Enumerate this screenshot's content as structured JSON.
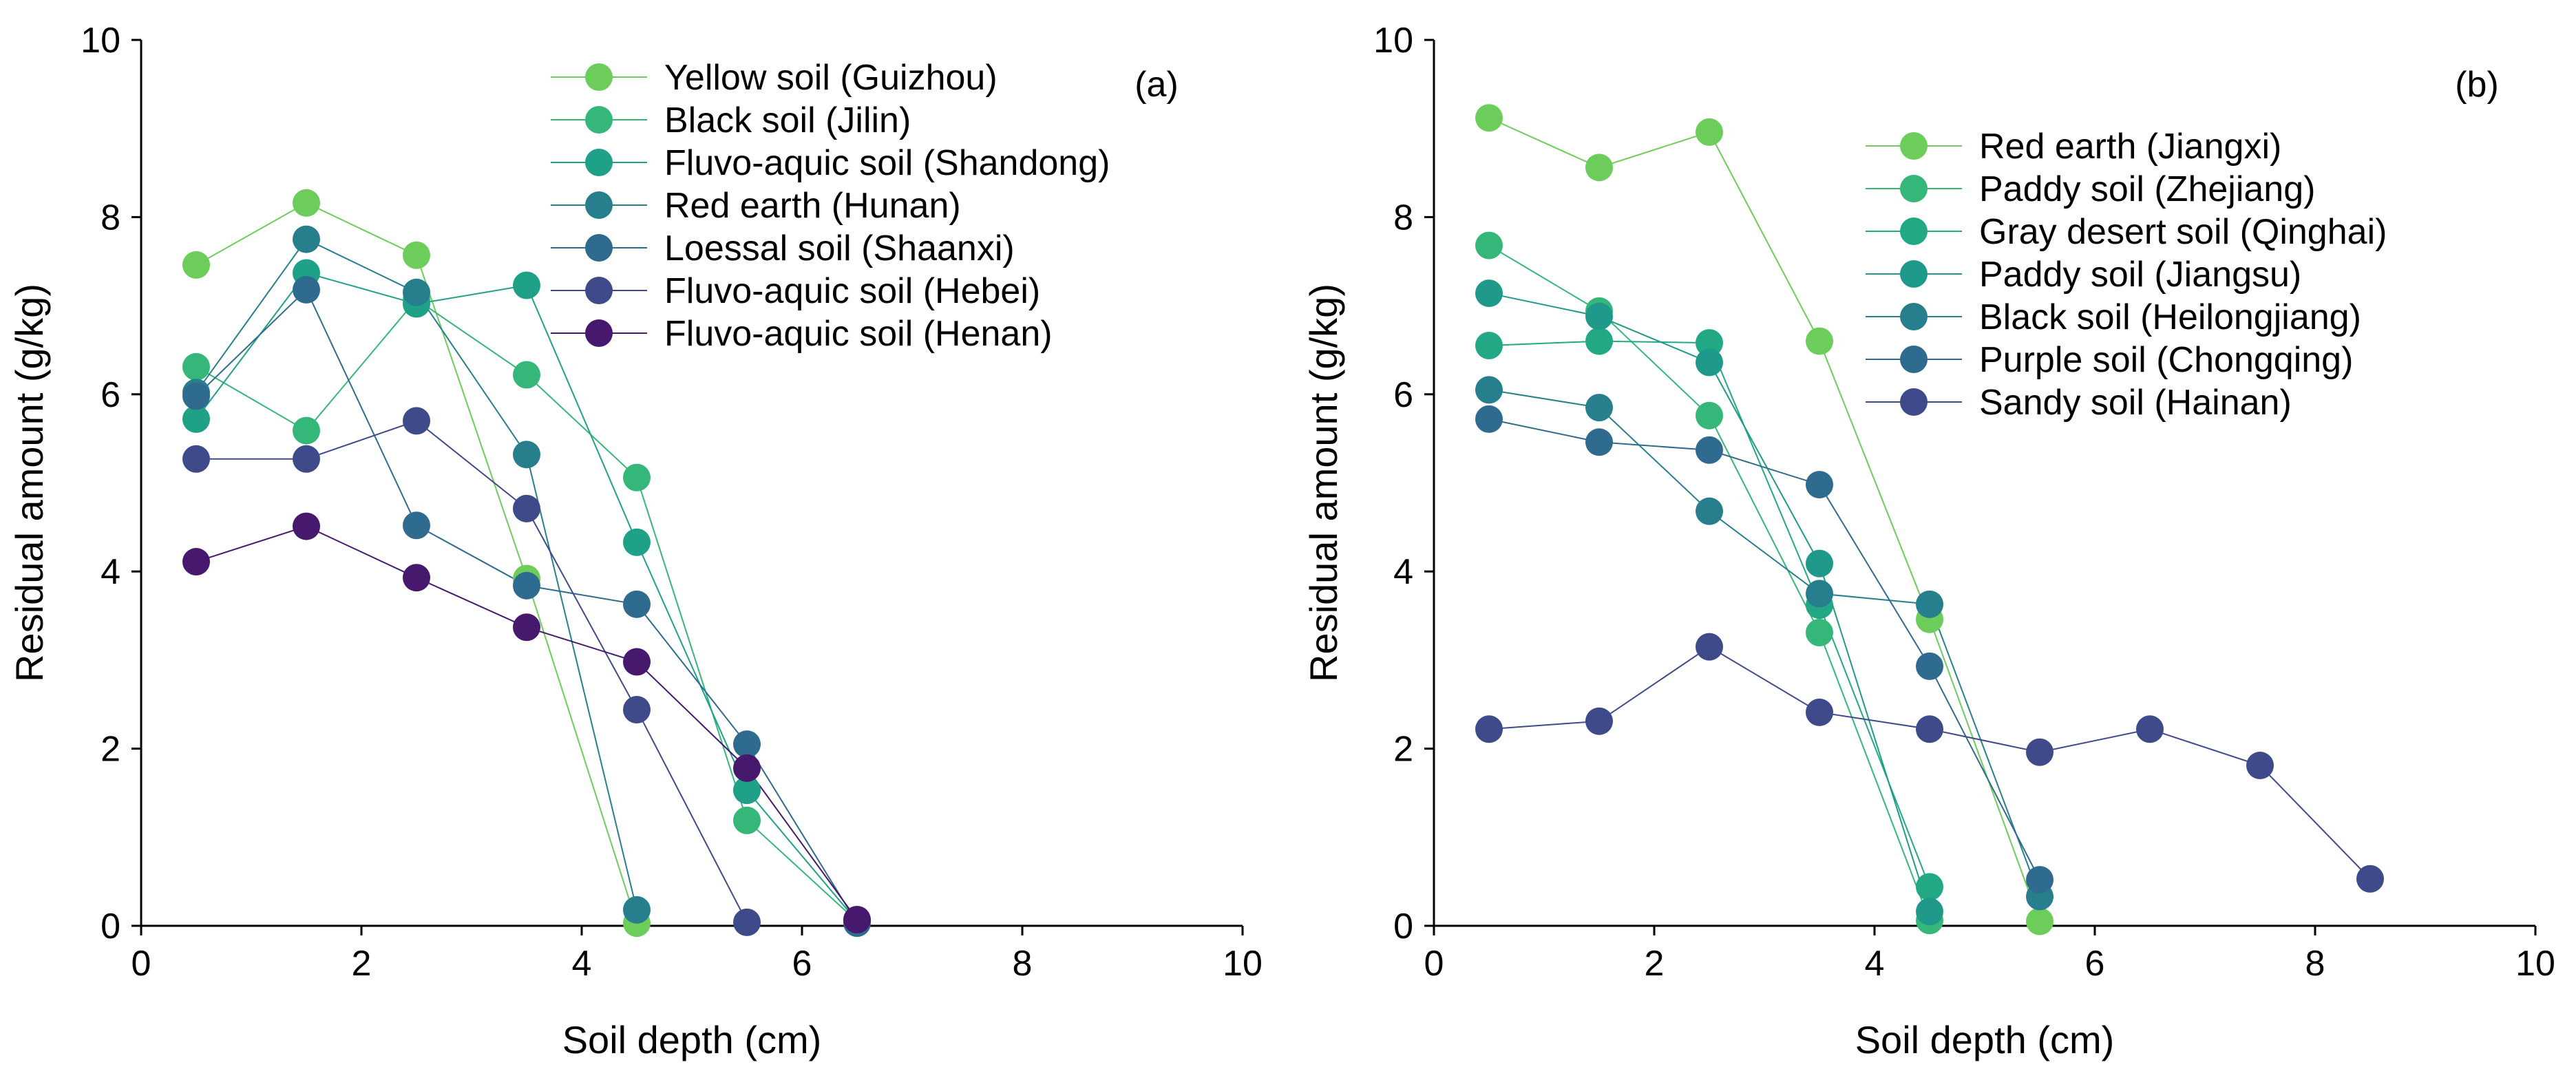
{
  "chart_data": [
    {
      "type": "line",
      "panel_label": "(a)",
      "xlabel": "Soil depth (cm)",
      "ylabel": "Residual amount (g/kg)",
      "xlim": [
        0,
        10
      ],
      "ylim": [
        0,
        10
      ],
      "xticks": [
        "0",
        "2",
        "4",
        "6",
        "8",
        "10"
      ],
      "yticks": [
        "0",
        "2",
        "4",
        "6",
        "8",
        "10"
      ],
      "legend_position": "top-right",
      "series": [
        {
          "name": "Yellow soil (Guizhou)",
          "color": "#6ccd5a",
          "x": [
            0.5,
            1.5,
            2.5,
            3.5,
            4.5
          ],
          "y": [
            7.46,
            8.16,
            7.57,
            3.92,
            0.03
          ]
        },
        {
          "name": "Black soil (Jilin)",
          "color": "#35b779",
          "x": [
            0.5,
            1.5,
            2.5,
            3.5,
            4.5,
            5.5,
            6.5
          ],
          "y": [
            6.31,
            5.59,
            7.07,
            6.22,
            5.06,
            1.19,
            0.05
          ]
        },
        {
          "name": "Fluvo-aquic soil (Shandong)",
          "color": "#1fa187",
          "x": [
            0.5,
            1.5,
            2.5,
            3.5,
            4.5,
            5.5,
            6.5
          ],
          "y": [
            5.72,
            7.37,
            7.02,
            7.23,
            4.33,
            1.53,
            0.05
          ]
        },
        {
          "name": "Red earth (Hunan)",
          "color": "#277f8e",
          "x": [
            0.5,
            1.5,
            2.5,
            3.5,
            4.5
          ],
          "y": [
            6.02,
            7.75,
            7.15,
            5.32,
            0.18
          ]
        },
        {
          "name": "Loessal soil (Shaanxi)",
          "color": "#2f6b8e",
          "x": [
            0.5,
            1.5,
            2.5,
            3.5,
            4.5,
            5.5,
            6.5
          ],
          "y": [
            5.98,
            7.18,
            4.52,
            3.84,
            3.63,
            2.05,
            0.03
          ]
        },
        {
          "name": "Fluvo-aquic soil (Hebei)",
          "color": "#3e4a89",
          "x": [
            0.5,
            1.5,
            2.5,
            3.5,
            4.5,
            5.5
          ],
          "y": [
            5.27,
            5.27,
            5.7,
            4.71,
            2.44,
            0.04
          ]
        },
        {
          "name": "Fluvo-aquic soil (Henan)",
          "color": "#46186e",
          "x": [
            0.5,
            1.5,
            2.5,
            3.5,
            4.5,
            5.5,
            6.5
          ],
          "y": [
            4.11,
            4.51,
            3.93,
            3.37,
            2.98,
            1.78,
            0.07
          ]
        }
      ]
    },
    {
      "type": "line",
      "panel_label": "(b)",
      "xlabel": "Soil depth (cm)",
      "ylabel": "Residual amount (g/kg)",
      "xlim": [
        0,
        10
      ],
      "ylim": [
        0,
        10
      ],
      "xticks": [
        "0",
        "2",
        "4",
        "6",
        "8",
        "10"
      ],
      "yticks": [
        "0",
        "2",
        "4",
        "6",
        "8",
        "10"
      ],
      "legend_position": "top-right",
      "series": [
        {
          "name": "Red earth (Jiangxi)",
          "color": "#6ccd5a",
          "x": [
            0.5,
            1.5,
            2.5,
            3.5,
            4.5,
            5.5
          ],
          "y": [
            9.12,
            8.56,
            8.96,
            6.6,
            3.46,
            0.05
          ]
        },
        {
          "name": "Paddy soil (Zhejiang)",
          "color": "#35b779",
          "x": [
            0.5,
            1.5,
            2.5,
            3.5,
            4.5
          ],
          "y": [
            7.68,
            6.94,
            5.76,
            3.31,
            0.06
          ]
        },
        {
          "name": "Gray desert soil (Qinghai)",
          "color": "#22a884",
          "x": [
            0.5,
            1.5,
            2.5,
            3.5,
            4.5
          ],
          "y": [
            6.55,
            6.6,
            6.58,
            3.62,
            0.44
          ]
        },
        {
          "name": "Paddy soil (Jiangsu)",
          "color": "#1f9a8a",
          "x": [
            0.5,
            1.5,
            2.5,
            3.5,
            4.5
          ],
          "y": [
            7.14,
            6.88,
            6.36,
            4.09,
            0.16
          ]
        },
        {
          "name": "Black soil (Heilongjiang)",
          "color": "#277f8e",
          "x": [
            0.5,
            1.5,
            2.5,
            3.5,
            4.5,
            5.5
          ],
          "y": [
            6.05,
            5.85,
            4.68,
            3.75,
            3.63,
            0.33
          ]
        },
        {
          "name": "Purple soil (Chongqing)",
          "color": "#2f6b8e",
          "x": [
            0.5,
            1.5,
            2.5,
            3.5,
            4.5,
            5.5
          ],
          "y": [
            5.72,
            5.46,
            5.37,
            4.98,
            2.93,
            0.52
          ]
        },
        {
          "name": "Sandy soil (Hainan)",
          "color": "#3e4a89",
          "x": [
            0.5,
            1.5,
            2.5,
            3.5,
            4.5,
            5.5,
            6.5,
            7.5,
            8.5
          ],
          "y": [
            2.22,
            2.31,
            3.15,
            2.41,
            2.22,
            1.96,
            2.22,
            1.81,
            0.53
          ]
        }
      ]
    }
  ]
}
